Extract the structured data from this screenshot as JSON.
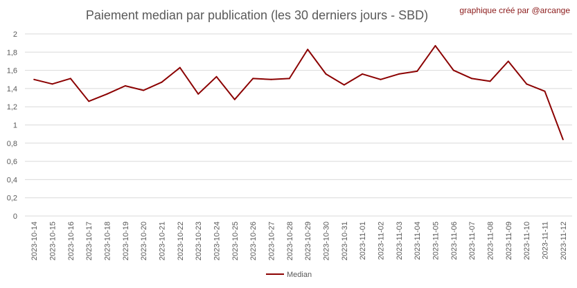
{
  "chart_data": {
    "type": "line",
    "title": "Paiement median par publication (les 30 derniers jours - SBD)",
    "credit": "graphique créé par @arcange",
    "xlabel": "",
    "ylabel": "",
    "ylim": [
      0,
      2
    ],
    "yticks": [
      "0",
      "0,2",
      "0,4",
      "0,6",
      "0,8",
      "1",
      "1,2",
      "1,4",
      "1,6",
      "1,8",
      "2"
    ],
    "grid": true,
    "legend_position": "bottom",
    "line_color": "#8b0000",
    "categories": [
      "2023-10-14",
      "2023-10-15",
      "2023-10-16",
      "2023-10-17",
      "2023-10-18",
      "2023-10-19",
      "2023-10-20",
      "2023-10-21",
      "2023-10-22",
      "2023-10-23",
      "2023-10-24",
      "2023-10-25",
      "2023-10-26",
      "2023-10-27",
      "2023-10-28",
      "2023-10-29",
      "2023-10-30",
      "2023-10-31",
      "2023-11-01",
      "2023-11-02",
      "2023-11-03",
      "2023-11-04",
      "2023-11-05",
      "2023-11-06",
      "2023-11-07",
      "2023-11-08",
      "2023-11-09",
      "2023-11-10",
      "2023-11-11",
      "2023-11-12"
    ],
    "series": [
      {
        "name": "Median",
        "values": [
          1.5,
          1.45,
          1.51,
          1.26,
          1.34,
          1.43,
          1.38,
          1.47,
          1.63,
          1.34,
          1.53,
          1.28,
          1.51,
          1.5,
          1.51,
          1.83,
          1.56,
          1.44,
          1.56,
          1.5,
          1.56,
          1.59,
          1.87,
          1.6,
          1.51,
          1.48,
          1.7,
          1.45,
          1.37,
          0.84
        ]
      }
    ]
  }
}
